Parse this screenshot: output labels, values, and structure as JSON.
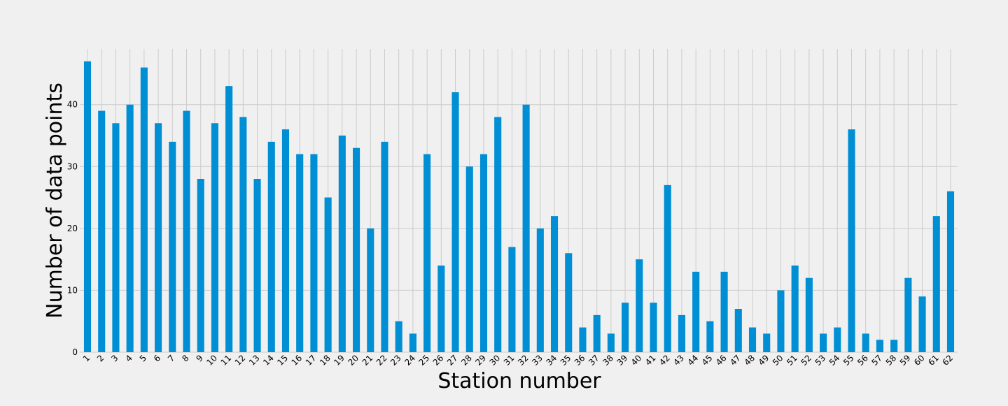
{
  "chart_data": {
    "type": "bar",
    "xlabel": "Station number",
    "ylabel": "Number of data points",
    "ylim": [
      0,
      49
    ],
    "yticks": [
      0,
      10,
      20,
      30,
      40
    ],
    "grid": true,
    "colors": {
      "bar": "#008fd5",
      "background": "#f0f0f0",
      "grid": "#cbcbcb"
    },
    "categories": [
      "1",
      "2",
      "3",
      "4",
      "5",
      "6",
      "7",
      "8",
      "9",
      "10",
      "11",
      "12",
      "13",
      "14",
      "15",
      "16",
      "17",
      "18",
      "19",
      "20",
      "21",
      "22",
      "23",
      "24",
      "25",
      "26",
      "27",
      "28",
      "29",
      "30",
      "31",
      "32",
      "33",
      "34",
      "35",
      "36",
      "37",
      "38",
      "39",
      "40",
      "41",
      "42",
      "43",
      "44",
      "45",
      "46",
      "47",
      "48",
      "49",
      "50",
      "51",
      "52",
      "53",
      "54",
      "55",
      "56",
      "57",
      "58",
      "59",
      "60",
      "61",
      "62"
    ],
    "values": [
      47,
      39,
      37,
      40,
      46,
      37,
      34,
      39,
      28,
      37,
      43,
      38,
      28,
      34,
      36,
      32,
      32,
      25,
      35,
      33,
      20,
      34,
      5,
      3,
      32,
      14,
      42,
      30,
      32,
      38,
      17,
      40,
      20,
      22,
      16,
      4,
      6,
      3,
      8,
      15,
      8,
      27,
      6,
      13,
      5,
      13,
      7,
      4,
      3,
      10,
      14,
      12,
      3,
      4,
      36,
      3,
      2,
      2,
      12,
      9,
      22,
      26
    ]
  }
}
